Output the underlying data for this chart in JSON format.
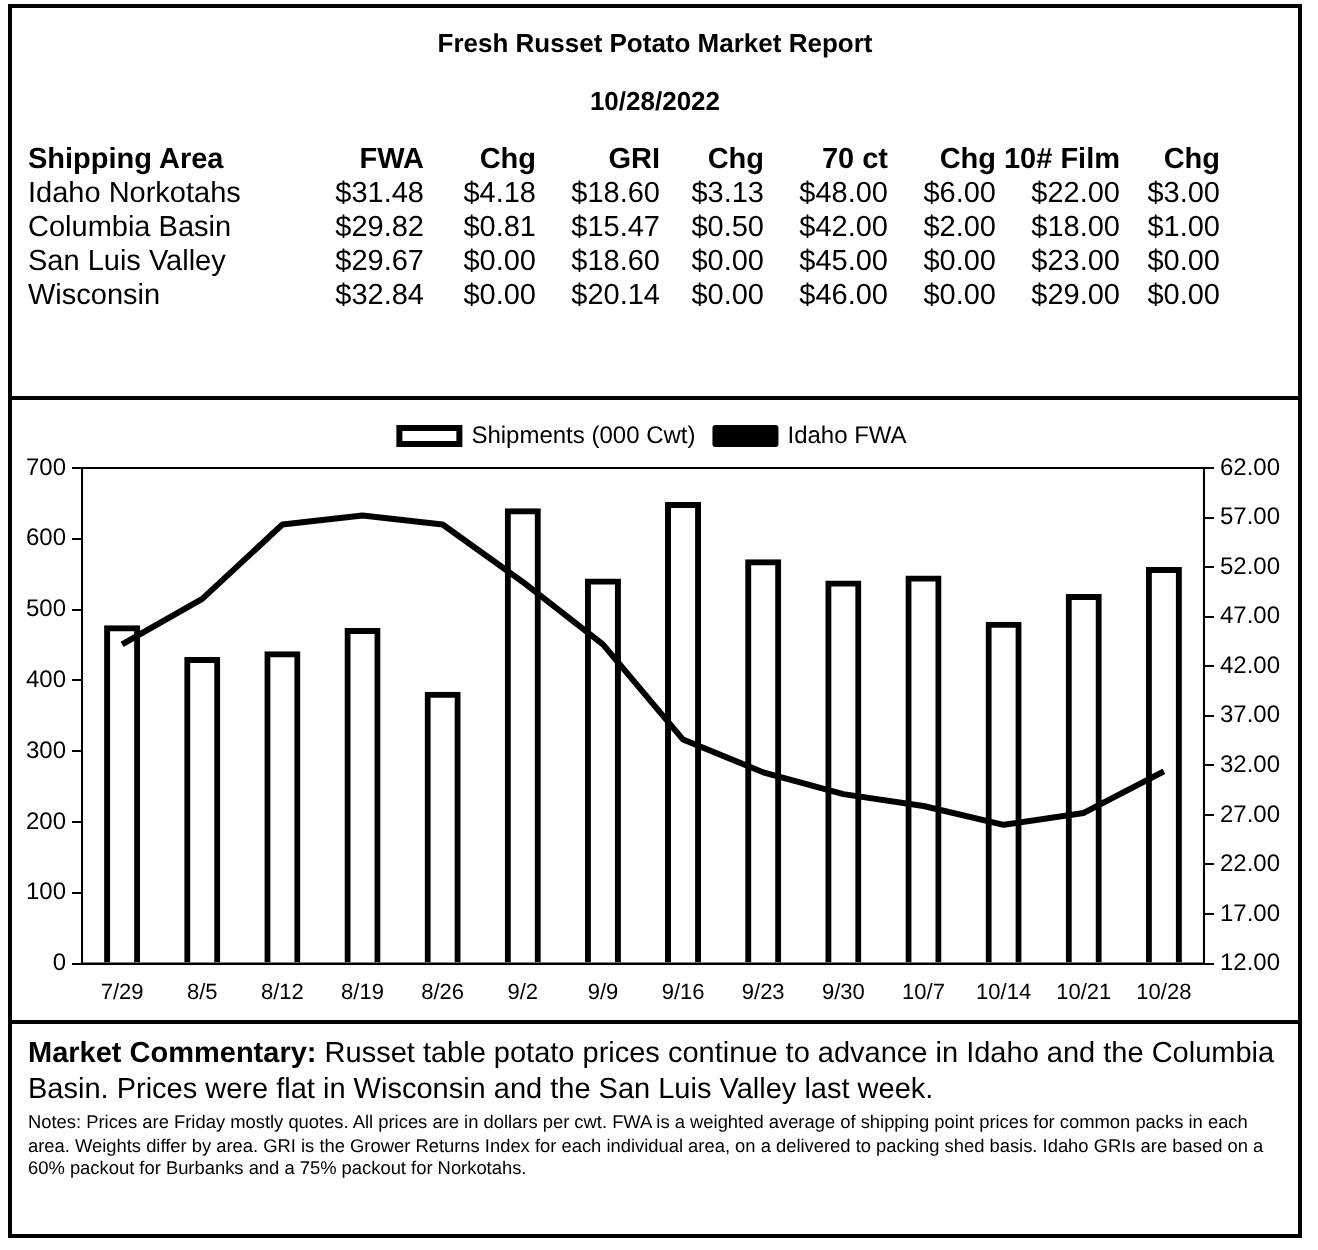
{
  "chart_data": {
    "type": "bar",
    "title": "Fresh Russet Potato Market Report",
    "subtitle": "10/28/2022",
    "categories": [
      "7/29",
      "8/5",
      "8/12",
      "8/19",
      "8/26",
      "9/2",
      "9/9",
      "9/16",
      "9/23",
      "9/30",
      "10/7",
      "10/14",
      "10/21",
      "10/28"
    ],
    "series": [
      {
        "name": "Shipments (000 Cwt)",
        "color": "#000000",
        "values": [
          478,
          433,
          441,
          474,
          384,
          643,
          544,
          652,
          571,
          541,
          548,
          483,
          522,
          560
        ]
      },
      {
        "name": "Idaho FWA",
        "type": "line",
        "axis": "y2",
        "color": "#000000",
        "values": [
          44.2,
          48.8,
          56.3,
          57.2,
          56.3,
          50.5,
          44.2,
          34.6,
          31.3,
          29.1,
          27.9,
          26.0,
          27.2,
          31.4
        ]
      }
    ],
    "ylim": [
      0,
      700
    ],
    "yticks": [
      0,
      100,
      200,
      300,
      400,
      500,
      600,
      700
    ],
    "y2lim": [
      12,
      62
    ],
    "y2ticks": [
      {
        "value": 12,
        "label": "12.00"
      },
      {
        "value": 17,
        "label": "17.00"
      },
      {
        "value": 22,
        "label": "22.00"
      },
      {
        "value": 27,
        "label": "27.00"
      },
      {
        "value": 32,
        "label": "32.00"
      },
      {
        "value": 37,
        "label": "37.00"
      },
      {
        "value": 42,
        "label": "42.00"
      },
      {
        "value": 47,
        "label": "47.00"
      },
      {
        "value": 52,
        "label": "52.00"
      },
      {
        "value": 57,
        "label": "57.00"
      },
      {
        "value": 62,
        "label": "62.00"
      }
    ],
    "grid": false,
    "legend": "top",
    "marker": "none",
    "line_style": "solid",
    "annotations": [
      "Shipping Area",
      "FWA",
      "Chg",
      "GRI",
      "Chg",
      "70 ct",
      "Chg",
      "10# Film",
      "Chg",
      "Idaho Norkotahs",
      "$31.48",
      "$4.18",
      "$18.60",
      "$3.13",
      "$48.00",
      "$6.00",
      "$22.00",
      "$3.00",
      "Columbia Basin",
      "$29.82",
      "$0.81",
      "$15.47",
      "$0.50",
      "$42.00",
      "$2.00",
      "$18.00",
      "$1.00",
      "San Luis Valley",
      "$29.67",
      "$0.00",
      "$18.60",
      "$0.00",
      "$45.00",
      "$0.00",
      "$23.00",
      "$0.00",
      "Wisconsin",
      "$32.84",
      "$0.00",
      "$20.14",
      "$0.00",
      "$46.00",
      "$0.00",
      "$29.00",
      "$0.00",
      "Market Commentary:",
      "Russet table potato prices continue to advance in Idaho and the Columbia Basin. Prices were flat in Wisconsin and the San Luis Valley last week.",
      "Notes: Prices are Friday mostly quotes. All prices are in dollars per cwt. FWA is a weighted average of shipping point prices for  common packs in each area. Weights differ by area. GRI is the Grower Returns Index for each individual area, on a delivered to packing shed basis. Idaho GRIs are based on a 60% packout for Burbanks and a 75% packout for Norkotahs."
    ]
  }
}
